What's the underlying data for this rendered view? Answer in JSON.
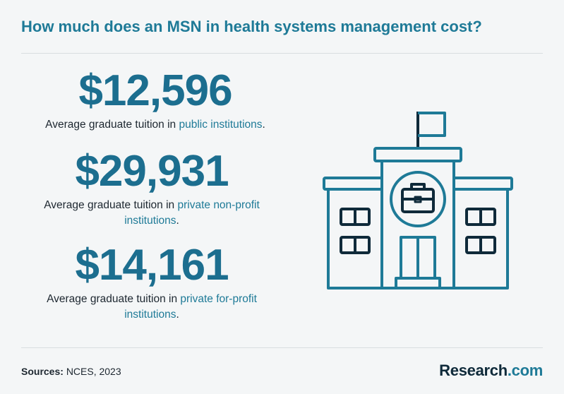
{
  "title": "How much does an MSN in health systems management cost?",
  "stats": [
    {
      "amount": "$12,596",
      "caption_prefix": "Average graduate tuition in ",
      "caption_highlight": "public institutions",
      "caption_suffix": "."
    },
    {
      "amount": "$29,931",
      "caption_prefix": "Average graduate tuition in ",
      "caption_highlight": "private non-profit institutions",
      "caption_suffix": "."
    },
    {
      "amount": "$14,161",
      "caption_prefix": "Average graduate tuition in ",
      "caption_highlight": "private for-profit institutions",
      "caption_suffix": "."
    }
  ],
  "footer": {
    "sources_label": "Sources:",
    "sources_value": "NCES, 2023"
  },
  "logo": {
    "name": "Research",
    "tld": ".com"
  },
  "illustration_icon": "school-building-with-briefcase-icon",
  "colors": {
    "accent": "#1e7a97",
    "amount": "#1c6e8f",
    "text": "#1d2730",
    "icon_stroke": "#1e7a97",
    "icon_dark": "#0f2a3a"
  }
}
